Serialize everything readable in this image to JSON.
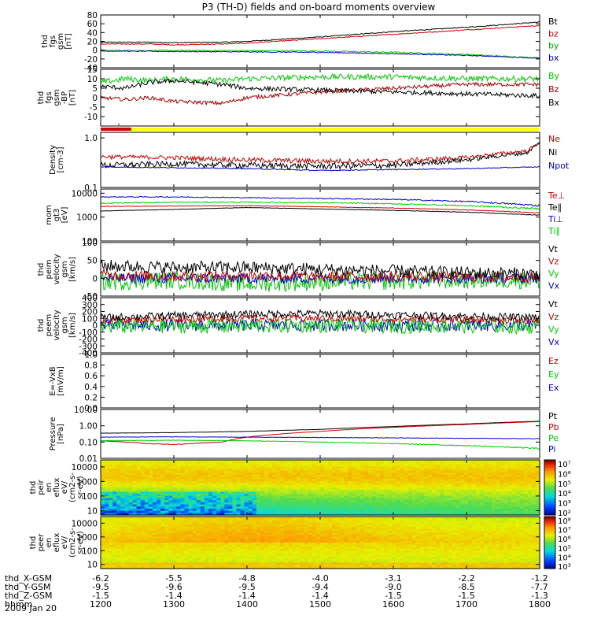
{
  "title": "P3 (TH-D) fields and on-board moments overview",
  "date_label": "2009 Jan 20",
  "x_axis": {
    "row_labels": [
      "thd_X-GSM",
      "thd_Y-GSM",
      "thd_Z-GSM",
      "hhmm"
    ],
    "ticks": [
      {
        "pos": 1200,
        "X": "-6.2",
        "Y": "-9.5",
        "Z": "-1.5",
        "hhmm": "1200"
      },
      {
        "pos": 1300,
        "X": "-5.5",
        "Y": "-9.6",
        "Z": "-1.4",
        "hhmm": "1300"
      },
      {
        "pos": 1400,
        "X": "-4.8",
        "Y": "-9.5",
        "Z": "-1.4",
        "hhmm": "1400"
      },
      {
        "pos": 1500,
        "X": "-4.0",
        "Y": "-9.4",
        "Z": "-1.4",
        "hhmm": "1500"
      },
      {
        "pos": 1600,
        "X": "-3.1",
        "Y": "-9.0",
        "Z": "-1.5",
        "hhmm": "1600"
      },
      {
        "pos": 1700,
        "X": "-2.2",
        "Y": "-8.5",
        "Z": "-1.5",
        "hhmm": "1700"
      },
      {
        "pos": 1800,
        "X": "-1.2",
        "Y": "-7.7",
        "Z": "-1.3",
        "hhmm": "1800"
      }
    ]
  },
  "colors": {
    "black": "#000000",
    "red": "#cc0000",
    "green": "#00cc00",
    "blue": "#0000cc",
    "yellow": "#ffff00",
    "dred": "#aa0000"
  },
  "chart_data": [
    {
      "type": "line",
      "ylabel": [
        "thd",
        "fgs",
        "gsm",
        "[nT]"
      ],
      "ylim": [
        -40,
        80
      ],
      "ticks": [
        "80",
        "60",
        "40",
        "20",
        "0",
        "-20",
        "-40"
      ],
      "tickvals": [
        80,
        60,
        40,
        20,
        0,
        -20,
        -40
      ],
      "legend": [
        {
          "name": "Bt",
          "color": "#000000"
        },
        {
          "name": "bz",
          "color": "#cc0000"
        },
        {
          "name": "by",
          "color": "#00aa00"
        },
        {
          "name": "bx",
          "color": "#0000cc"
        }
      ],
      "series": [
        {
          "name": "Bt",
          "color": "#000000",
          "x": [
            1200,
            1240,
            1300,
            1340,
            1400,
            1500,
            1600,
            1700,
            1800
          ],
          "values": [
            18,
            18,
            17,
            18,
            20,
            30,
            42,
            52,
            64
          ],
          "noise": 1
        },
        {
          "name": "bz",
          "color": "#cc0000",
          "x": [
            1200,
            1240,
            1300,
            1340,
            1400,
            1500,
            1600,
            1700,
            1800
          ],
          "values": [
            14,
            14,
            12,
            14,
            16,
            26,
            36,
            46,
            56
          ],
          "noise": 1
        },
        {
          "name": "by",
          "color": "#00cc00",
          "x": [
            1200,
            1300,
            1400,
            1500,
            1600,
            1700,
            1800
          ],
          "values": [
            -1,
            -1,
            -1,
            -2,
            -5,
            -10,
            -18
          ],
          "noise": 1.5
        },
        {
          "name": "bx",
          "color": "#0000cc",
          "x": [
            1200,
            1300,
            1400,
            1500,
            1600,
            1700,
            1800
          ],
          "values": [
            -2,
            -3,
            -4,
            -5,
            -8,
            -12,
            -18
          ],
          "noise": 1
        }
      ]
    },
    {
      "type": "line",
      "ylabel": [
        "thd",
        "fgs",
        "gsm",
        "-BP",
        "[nT]"
      ],
      "ylim": [
        -15,
        15
      ],
      "ticks": [
        "15",
        "10",
        "5",
        "0",
        "-5",
        "-10"
      ],
      "tickvals": [
        15,
        10,
        5,
        0,
        -5,
        -10
      ],
      "legend": [
        {
          "name": "By",
          "color": "#00cc00"
        },
        {
          "name": "Bz",
          "color": "#aa0000"
        },
        {
          "name": "Bx",
          "color": "#000000"
        }
      ],
      "series": [
        {
          "name": "By",
          "color": "#00cc00",
          "x": [
            1200,
            1220,
            1240,
            1300,
            1340,
            1400,
            1500,
            1600,
            1700,
            1800
          ],
          "values": [
            8,
            10,
            9,
            10,
            9,
            10,
            11,
            11,
            10,
            10
          ],
          "noise": 1.5
        },
        {
          "name": "Bz",
          "color": "#aa0000",
          "x": [
            1200,
            1220,
            1240,
            1300,
            1340,
            1400,
            1500,
            1600,
            1700,
            1800
          ],
          "values": [
            0,
            -1,
            0,
            -2,
            -3,
            0,
            3,
            5,
            7,
            7
          ],
          "noise": 1
        },
        {
          "name": "Bx",
          "color": "#000000",
          "x": [
            1200,
            1220,
            1240,
            1300,
            1340,
            1400,
            1500,
            1600,
            1700,
            1800
          ],
          "values": [
            6,
            5,
            8,
            9,
            7,
            5,
            4,
            3,
            2,
            1
          ],
          "noise": 1.2
        }
      ]
    },
    {
      "type": "line",
      "ylabel": [
        "Density",
        "[cm-3]"
      ],
      "ylim": [
        0.1,
        1.3
      ],
      "log": true,
      "ticks": [
        "1.0",
        "0.1"
      ],
      "tickvals": [
        1.0,
        0.1
      ],
      "legend": [
        {
          "name": "Ne",
          "color": "#cc0000"
        },
        {
          "name": "Ni",
          "color": "#000000"
        },
        {
          "name": "Npot",
          "color": "#0000cc"
        }
      ],
      "series": [
        {
          "name": "Ne",
          "color": "#cc0000",
          "x": [
            1200,
            1300,
            1400,
            1500,
            1600,
            1700,
            1750,
            1800
          ],
          "values": [
            0.42,
            0.4,
            0.36,
            0.34,
            0.34,
            0.4,
            0.55,
            0.8
          ],
          "noise": 0.04
        },
        {
          "name": "Ni",
          "color": "#000000",
          "x": [
            1200,
            1300,
            1400,
            1500,
            1600,
            1700,
            1750,
            1800
          ],
          "values": [
            0.28,
            0.3,
            0.28,
            0.27,
            0.28,
            0.36,
            0.5,
            0.8
          ],
          "noise": 0.04
        },
        {
          "name": "Npot",
          "color": "#0000cc",
          "x": [
            1200,
            1300,
            1400,
            1500,
            1600,
            1700,
            1800
          ],
          "values": [
            0.26,
            0.25,
            0.24,
            0.22,
            0.23,
            0.24,
            0.26
          ],
          "noise": 0.005
        }
      ]
    },
    {
      "type": "line",
      "ylabel": [
        "mom",
        "gt3",
        "[eV]"
      ],
      "ylim": [
        100,
        15000
      ],
      "log": true,
      "ticks": [
        "10000",
        "1000",
        "100"
      ],
      "tickvals": [
        10000,
        1000,
        100
      ],
      "legend": [
        {
          "name": "Te⊥",
          "color": "#cc0000"
        },
        {
          "name": "Te∥",
          "color": "#000000"
        },
        {
          "name": "Ti⊥",
          "color": "#0000cc"
        },
        {
          "name": "Ti∥",
          "color": "#00cc00"
        }
      ],
      "series": [
        {
          "name": "Ti⊥",
          "color": "#0000cc",
          "x": [
            1200,
            1300,
            1400,
            1500,
            1600,
            1700,
            1800
          ],
          "values": [
            7000,
            7000,
            6500,
            6000,
            5500,
            4500,
            3000
          ],
          "noise": 300
        },
        {
          "name": "Ti∥",
          "color": "#00cc00",
          "x": [
            1200,
            1300,
            1400,
            1500,
            1600,
            1700,
            1800
          ],
          "values": [
            3800,
            4200,
            4200,
            4000,
            3600,
            3000,
            2200
          ],
          "noise": 200
        },
        {
          "name": "Te⊥",
          "color": "#cc0000",
          "x": [
            1200,
            1300,
            1400,
            1500,
            1600,
            1700,
            1800
          ],
          "values": [
            2800,
            2900,
            3000,
            2700,
            2400,
            2000,
            1500
          ],
          "noise": 50
        },
        {
          "name": "Te∥",
          "color": "#000000",
          "x": [
            1200,
            1300,
            1400,
            1500,
            1600,
            1700,
            1800
          ],
          "values": [
            1800,
            2100,
            2500,
            2200,
            1900,
            1600,
            1200
          ],
          "noise": 40
        }
      ]
    },
    {
      "type": "line",
      "ylabel": [
        "thd",
        "peim",
        "velocity",
        "gsm",
        "[km/s]"
      ],
      "ylim": [
        -50,
        100
      ],
      "ticks": [
        "100",
        "50",
        "0",
        "-50"
      ],
      "tickvals": [
        100,
        50,
        0,
        -50
      ],
      "legend": [
        {
          "name": "Vt",
          "color": "#000000"
        },
        {
          "name": "Vz",
          "color": "#cc0000"
        },
        {
          "name": "Vy",
          "color": "#00cc00"
        },
        {
          "name": "Vx",
          "color": "#0000cc"
        }
      ],
      "series": [
        {
          "name": "Vy",
          "color": "#00cc00",
          "x": [
            1200,
            1300,
            1400,
            1500,
            1600,
            1700,
            1800
          ],
          "values": [
            -10,
            -5,
            -15,
            -10,
            -8,
            -5,
            -5
          ],
          "noise": 25
        },
        {
          "name": "Vx",
          "color": "#0000cc",
          "x": [
            1200,
            1300,
            1400,
            1500,
            1600,
            1700,
            1800
          ],
          "values": [
            0,
            0,
            0,
            0,
            0,
            0,
            0
          ],
          "noise": 15
        },
        {
          "name": "Vz",
          "color": "#cc0000",
          "x": [
            1200,
            1300,
            1400,
            1500,
            1600,
            1700,
            1800
          ],
          "values": [
            10,
            5,
            8,
            5,
            5,
            3,
            3
          ],
          "noise": 15
        },
        {
          "name": "Vt",
          "color": "#000000",
          "x": [
            1200,
            1300,
            1400,
            1500,
            1600,
            1700,
            1800
          ],
          "values": [
            35,
            30,
            30,
            25,
            20,
            15,
            12
          ],
          "noise": 18
        }
      ]
    },
    {
      "type": "line",
      "ylabel": [
        "thd",
        "peem",
        "velocity",
        "gsm",
        "[km/s]"
      ],
      "ylim": [
        -400,
        400
      ],
      "ticks": [
        "400",
        "300",
        "200",
        "100",
        "0",
        "-100",
        "-200",
        "-300",
        "-400"
      ],
      "tickvals": [
        400,
        300,
        200,
        100,
        0,
        -100,
        -200,
        -300,
        -400
      ],
      "legend": [
        {
          "name": "Vt",
          "color": "#000000"
        },
        {
          "name": "Vz",
          "color": "#cc0000"
        },
        {
          "name": "Vy",
          "color": "#00cc00"
        },
        {
          "name": "Vx",
          "color": "#0000cc"
        }
      ],
      "series": [
        {
          "name": "Vx",
          "color": "#0000cc",
          "x": [
            1200,
            1300,
            1400,
            1500,
            1600,
            1700,
            1800
          ],
          "values": [
            0,
            0,
            0,
            0,
            0,
            0,
            0
          ],
          "noise": 90
        },
        {
          "name": "Vy",
          "color": "#00cc00",
          "x": [
            1200,
            1300,
            1400,
            1500,
            1600,
            1700,
            1800
          ],
          "values": [
            -20,
            -10,
            -10,
            0,
            -10,
            -10,
            -20
          ],
          "noise": 110
        },
        {
          "name": "Vz",
          "color": "#cc0000",
          "x": [
            1200,
            1300,
            1400,
            1500,
            1600,
            1700,
            1800
          ],
          "values": [
            70,
            90,
            100,
            100,
            90,
            80,
            70
          ],
          "noise": 50
        },
        {
          "name": "Vt",
          "color": "#000000",
          "x": [
            1200,
            1300,
            1400,
            1500,
            1600,
            1700,
            1800
          ],
          "values": [
            110,
            140,
            160,
            170,
            150,
            130,
            110
          ],
          "noise": 55
        }
      ]
    },
    {
      "type": "line",
      "ylabel": [
        "E=-VxB",
        "[mV/m]"
      ],
      "ylim": [
        0,
        1
      ],
      "ticks": [
        "1.0",
        "0.8",
        "0.6",
        "0.4",
        "0.2",
        "0.0"
      ],
      "tickvals": [
        1.0,
        0.8,
        0.6,
        0.4,
        0.2,
        0.0
      ],
      "legend": [
        {
          "name": "Ez",
          "color": "#cc0000"
        },
        {
          "name": "Ey",
          "color": "#00cc00"
        },
        {
          "name": "Ex",
          "color": "#0000cc"
        }
      ],
      "series": []
    },
    {
      "type": "line",
      "ylabel": [
        "Pressure",
        "[nPa]"
      ],
      "ylim": [
        0.01,
        10
      ],
      "log": true,
      "ticks": [
        "10.00",
        "1.00",
        "0.10",
        "0.01"
      ],
      "tickvals": [
        10,
        1,
        0.1,
        0.01
      ],
      "legend": [
        {
          "name": "Pt",
          "color": "#000000"
        },
        {
          "name": "Pb",
          "color": "#cc0000"
        },
        {
          "name": "Pe",
          "color": "#00cc00"
        },
        {
          "name": "Pi",
          "color": "#0000cc"
        }
      ],
      "series": [
        {
          "name": "Pt",
          "color": "#000000",
          "x": [
            1200,
            1300,
            1400,
            1500,
            1600,
            1700,
            1800
          ],
          "values": [
            0.35,
            0.38,
            0.45,
            0.6,
            0.9,
            1.3,
            1.9
          ],
          "noise": 0.005
        },
        {
          "name": "Pb",
          "color": "#cc0000",
          "x": [
            1200,
            1240,
            1300,
            1340,
            1400,
            1500,
            1600,
            1700,
            1800
          ],
          "values": [
            0.12,
            0.08,
            0.07,
            0.1,
            0.2,
            0.45,
            0.8,
            1.2,
            1.8
          ],
          "noise": 0.003
        },
        {
          "name": "Pi",
          "color": "#0000cc",
          "x": [
            1200,
            1300,
            1400,
            1500,
            1600,
            1700,
            1800
          ],
          "values": [
            0.2,
            0.21,
            0.2,
            0.19,
            0.18,
            0.17,
            0.16
          ],
          "noise": 0.005
        },
        {
          "name": "Pe",
          "color": "#00cc00",
          "x": [
            1200,
            1300,
            1400,
            1500,
            1600,
            1700,
            1800
          ],
          "values": [
            0.12,
            0.13,
            0.12,
            0.1,
            0.08,
            0.06,
            0.04
          ],
          "noise": 0.004
        }
      ]
    },
    {
      "type": "heatmap",
      "ylabel": [
        "thd",
        "peir",
        "en",
        "eflux",
        "eV/",
        "(cm2-s-",
        "sr-eV)"
      ],
      "ylim": [
        5,
        30000
      ],
      "log": true,
      "ticks": [
        "10000",
        "1000",
        "100",
        "10"
      ],
      "tickvals": [
        10000,
        1000,
        100,
        10
      ],
      "colorbar_ticks": [
        "10⁷",
        "10⁶",
        "10⁵",
        "10⁴",
        "10³",
        "10²"
      ],
      "colorbar_range": [
        2,
        7
      ],
      "zmodel": "ion"
    },
    {
      "type": "heatmap",
      "ylabel": [
        "thd",
        "peer",
        "en",
        "eflux",
        "eV/",
        "(cm2-s-",
        "sr-eV)"
      ],
      "ylim": [
        5,
        30000
      ],
      "log": true,
      "ticks": [
        "10000",
        "1000",
        "100",
        "10"
      ],
      "tickvals": [
        10000,
        1000,
        100,
        10
      ],
      "colorbar_ticks": [
        "10⁸",
        "10⁷",
        "10⁶",
        "10⁵",
        "10⁴",
        "10³"
      ],
      "colorbar_range": [
        3,
        8
      ],
      "zmodel": "electron"
    }
  ]
}
